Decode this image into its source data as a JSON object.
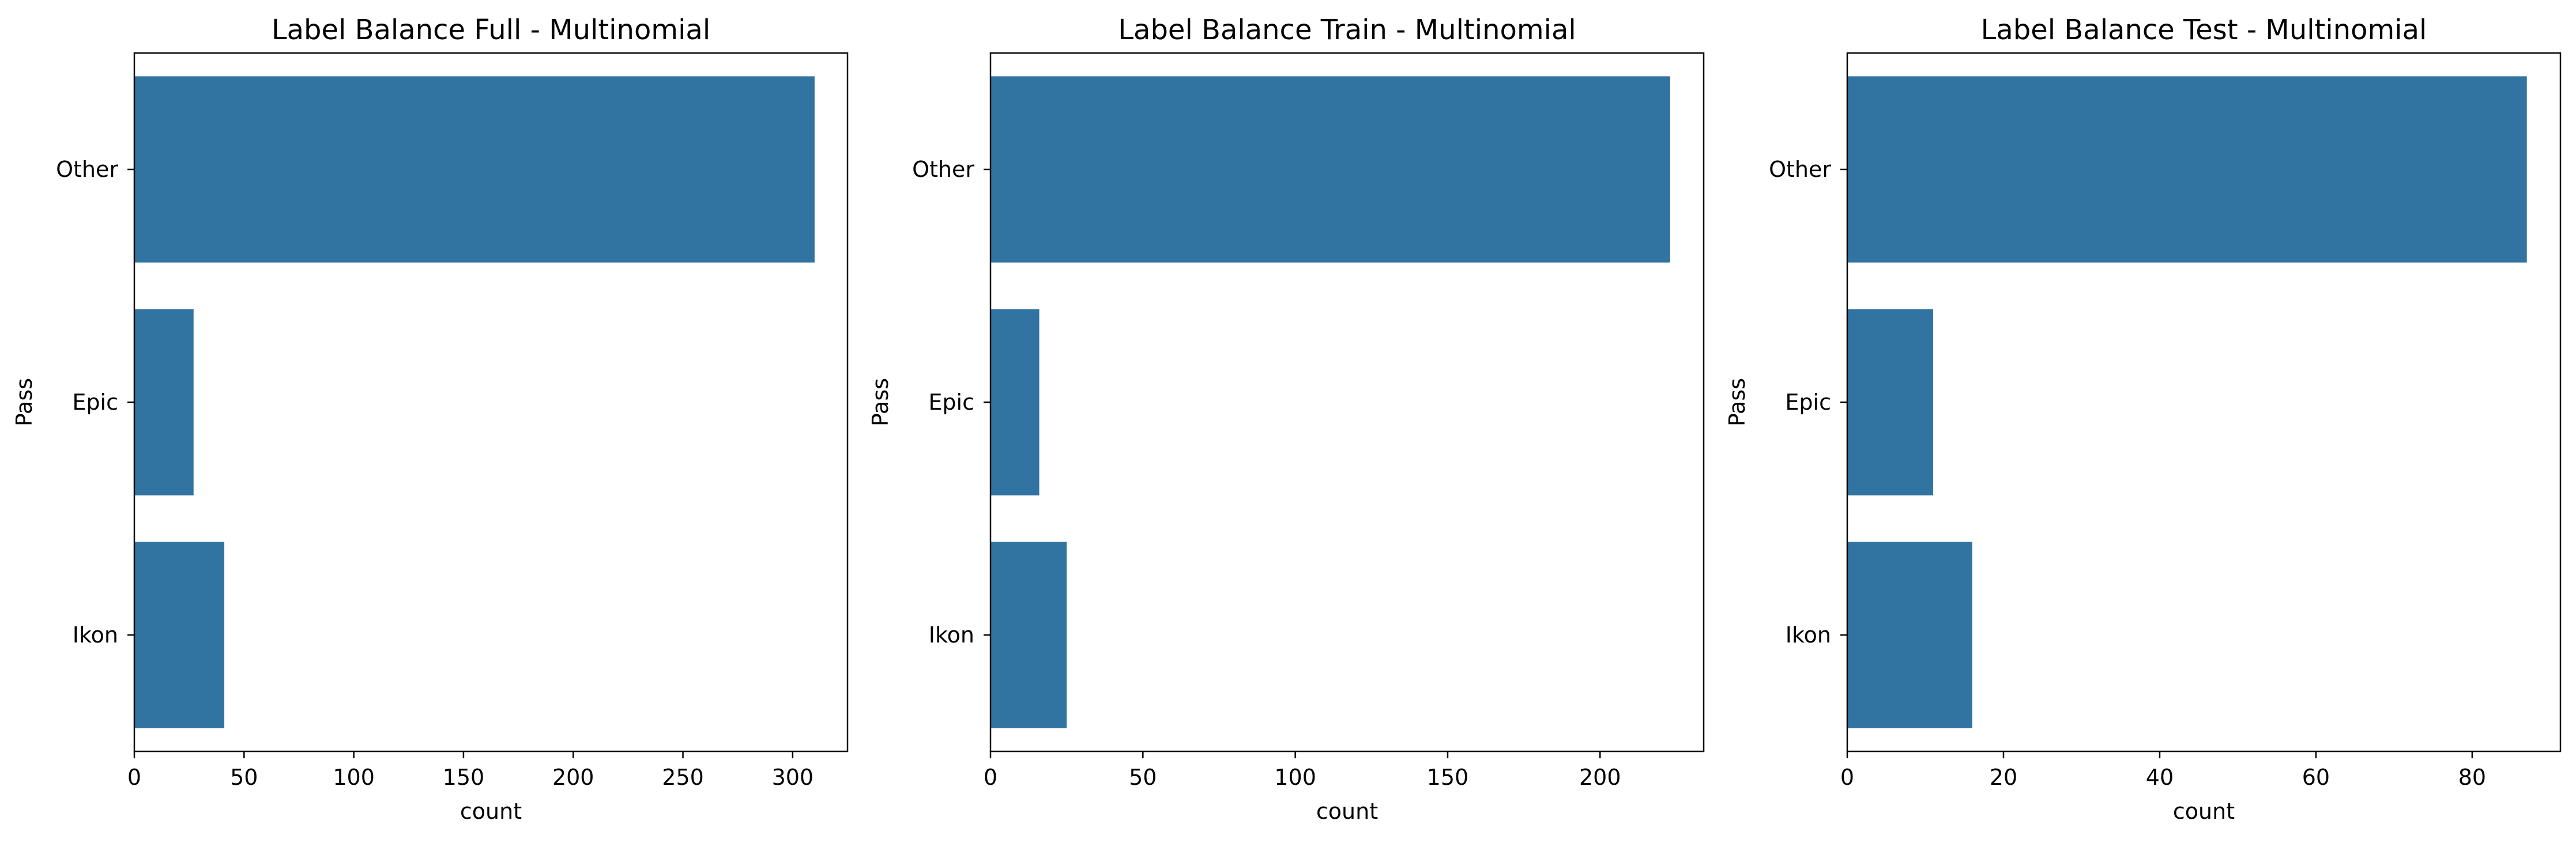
{
  "chart_data": [
    {
      "type": "bar",
      "orientation": "horizontal",
      "title": "Label Balance Full - Multinomial",
      "xlabel": "count",
      "ylabel": "Pass",
      "categories": [
        "Other",
        "Epic",
        "Ikon"
      ],
      "values": [
        310,
        27,
        41
      ],
      "xlim": [
        0,
        325
      ],
      "xticks": [
        0,
        50,
        100,
        150,
        200,
        250,
        300
      ],
      "color": "#3274a1",
      "grid": false
    },
    {
      "type": "bar",
      "orientation": "horizontal",
      "title": "Label Balance Train - Multinomial",
      "xlabel": "count",
      "ylabel": "Pass",
      "categories": [
        "Other",
        "Epic",
        "Ikon"
      ],
      "values": [
        223,
        16,
        25
      ],
      "xlim": [
        0,
        234
      ],
      "xticks": [
        0,
        50,
        100,
        150,
        200
      ],
      "color": "#3274a1",
      "grid": false
    },
    {
      "type": "bar",
      "orientation": "horizontal",
      "title": "Label Balance Test - Multinomial",
      "xlabel": "count",
      "ylabel": "Pass",
      "categories": [
        "Other",
        "Epic",
        "Ikon"
      ],
      "values": [
        87,
        11,
        16
      ],
      "xlim": [
        0,
        91.3
      ],
      "xticks": [
        0,
        20,
        40,
        60,
        80
      ],
      "color": "#3274a1",
      "grid": false
    }
  ]
}
